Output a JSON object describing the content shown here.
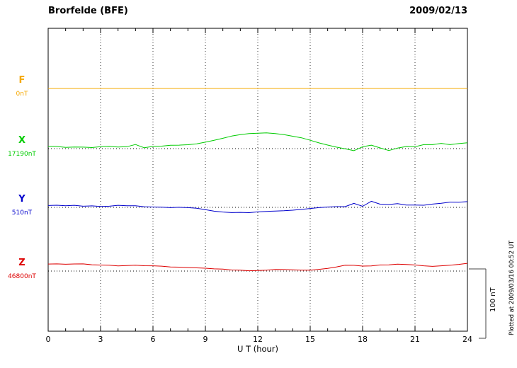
{
  "header": {
    "title": "Brorfelde (BFE)",
    "date": "2009/02/13"
  },
  "side": {
    "scale_label": "100 nT",
    "plotted_at": "Plotted at 2009/03/16 00:52 UT"
  },
  "chart_data": {
    "type": "line",
    "title": "Brorfelde (BFE) magnetogram 2009/02/13",
    "xlabel": "U T (hour)",
    "xlim": [
      0,
      24
    ],
    "x_ticks": [
      0,
      3,
      6,
      9,
      12,
      15,
      18,
      21,
      24
    ],
    "x_step_hours": 0.5,
    "grid": "dotted vertical at 3h intervals, dotted horizontal baselines per channel",
    "scale_bar_nT": 100,
    "units": "values are nT offsets from each channel baseline",
    "channels": [
      {
        "name": "F",
        "baseline_label": "0nT",
        "color": "#f5a800",
        "values": [
          0,
          0,
          0,
          0,
          0,
          0,
          0,
          0,
          0,
          0,
          0,
          0,
          0,
          0,
          0,
          0,
          0,
          0,
          0,
          0,
          0,
          0,
          0,
          0,
          0,
          0,
          0,
          0,
          0,
          0,
          0,
          0,
          0,
          0,
          0,
          0,
          0,
          0,
          0,
          0,
          0,
          0,
          0,
          0,
          0,
          0,
          0,
          0,
          0
        ]
      },
      {
        "name": "X",
        "baseline_label": "17190nT",
        "color": "#00cc00",
        "values": [
          3,
          3,
          2,
          3,
          3,
          2,
          3,
          3,
          2,
          3,
          7,
          2,
          4,
          4,
          5,
          5,
          6,
          8,
          11,
          14,
          17,
          20,
          22,
          24,
          25,
          26,
          25,
          23,
          20,
          17,
          13,
          9,
          6,
          3,
          1,
          -3,
          2,
          4,
          0,
          -3,
          2,
          5,
          4,
          6,
          5,
          7,
          6,
          9,
          11
        ]
      },
      {
        "name": "Y",
        "baseline_label": "510nT",
        "color": "#0000cc",
        "values": [
          3,
          3,
          2,
          3,
          2,
          3,
          2,
          2,
          3,
          2,
          2,
          1,
          1,
          1,
          0,
          0,
          -1,
          -2,
          -4,
          -6,
          -7,
          -8,
          -8,
          -9,
          -8,
          -7,
          -6,
          -5,
          -4,
          -3,
          -2,
          -1,
          0,
          1,
          2,
          8,
          3,
          10,
          4,
          3,
          5,
          4,
          5,
          5,
          6,
          6,
          7,
          7,
          9
        ]
      },
      {
        "name": "Z",
        "baseline_label": "46800nT",
        "color": "#dd0000",
        "values": [
          12,
          12,
          11,
          11,
          11,
          10,
          10,
          10,
          9,
          9,
          9,
          8,
          8,
          8,
          7,
          7,
          6,
          5,
          4,
          3,
          3,
          2,
          2,
          1,
          1,
          1,
          2,
          2,
          2,
          2,
          2,
          3,
          4,
          6,
          8,
          9,
          9,
          10,
          11,
          10,
          10,
          9,
          9,
          9,
          9,
          10,
          10,
          10,
          11
        ]
      }
    ]
  }
}
